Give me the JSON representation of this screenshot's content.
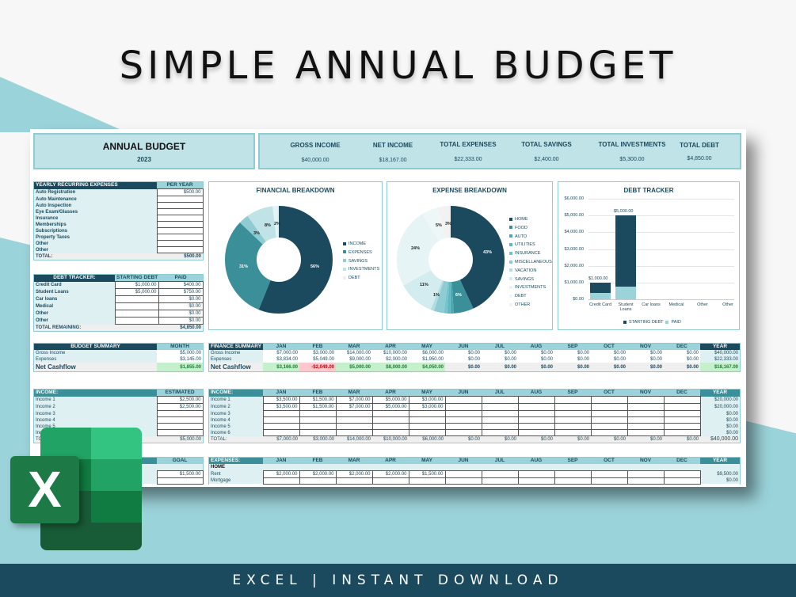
{
  "headline": "SIMPLE ANNUAL BUDGET",
  "footer": "EXCEL | INSTANT DOWNLOAD",
  "logo": {
    "letter": "X",
    "icon": "excel-logo-icon"
  },
  "title_block": {
    "title": "ANNUAL BUDGET",
    "year": "2023"
  },
  "kpis": [
    {
      "label": "GROSS INCOME",
      "value": "$40,000.00"
    },
    {
      "label": "NET INCOME",
      "value": "$18,167.00"
    },
    {
      "label": "TOTAL EXPENSES",
      "value": "$22,333.00"
    },
    {
      "label": "TOTAL SAVINGS",
      "value": "$2,400.00"
    },
    {
      "label": "TOTAL INVESTMENTS",
      "value": "$5,300.00"
    },
    {
      "label": "TOTAL DEBT",
      "value": "$4,850.00"
    }
  ],
  "recurring": {
    "header": "YEARLY RECURRING EXPENSES",
    "col": "PER YEAR",
    "rows": [
      {
        "label": "Auto Registration",
        "value": "$500.00"
      },
      {
        "label": "Auto Maintenance",
        "value": ""
      },
      {
        "label": "Auto Inspection",
        "value": ""
      },
      {
        "label": "Eye Exam/Glasses",
        "value": ""
      },
      {
        "label": "Insurance",
        "value": ""
      },
      {
        "label": "Memberships",
        "value": ""
      },
      {
        "label": "Subscriptions",
        "value": ""
      },
      {
        "label": "Property Taxes",
        "value": ""
      },
      {
        "label": "Other",
        "value": ""
      },
      {
        "label": "Other",
        "value": ""
      }
    ],
    "total_label": "TOTAL:",
    "total": "$500.00"
  },
  "debt_table": {
    "header": "DEBT TRACKER:",
    "cols": [
      "STARTING DEBT",
      "PAID"
    ],
    "rows": [
      {
        "label": "Credit Card",
        "start": "$1,000.00",
        "paid": "$400.00"
      },
      {
        "label": "Student Loans",
        "start": "$5,000.00",
        "paid": "$750.00"
      },
      {
        "label": "Car loans",
        "start": "",
        "paid": "$0.00"
      },
      {
        "label": "Medical",
        "start": "",
        "paid": "$0.00"
      },
      {
        "label": "Other",
        "start": "",
        "paid": "$0.00"
      },
      {
        "label": "Other",
        "start": "",
        "paid": "$0.00"
      }
    ],
    "total_label": "TOTAL REMAINING:",
    "total": "$4,850.00"
  },
  "budget_summary": {
    "header": "BUDGET SUMMARY",
    "col": "MONTH",
    "rows": [
      {
        "label": "Gross Income",
        "value": "$5,000.00"
      },
      {
        "label": "Expenses",
        "value": "$3,145.00"
      }
    ],
    "net_label": "Net Cashflow",
    "net": "$1,855.00"
  },
  "months": [
    "JAN",
    "FEB",
    "MAR",
    "APR",
    "MAY",
    "JUN",
    "JUL",
    "AUG",
    "SEP",
    "OCT",
    "NOV",
    "DEC"
  ],
  "year_label": "YEAR",
  "finance_summary": {
    "header": "FINANCE SUMMARY",
    "gross_label": "Gross Income",
    "gross": [
      "$7,000.00",
      "$3,000.00",
      "$14,000.00",
      "$10,000.00",
      "$6,000.00",
      "$0.00",
      "$0.00",
      "$0.00",
      "$0.00",
      "$0.00",
      "$0.00",
      "$0.00"
    ],
    "gross_year": "$40,000.00",
    "exp_label": "Expenses",
    "exp": [
      "$3,834.00",
      "$5,049.00",
      "$9,000.00",
      "$2,000.00",
      "$1,950.00",
      "$0.00",
      "$0.00",
      "$0.00",
      "$0.00",
      "$0.00",
      "$0.00",
      "$0.00"
    ],
    "exp_year": "$22,333.00",
    "net_label": "Net Cashflow",
    "net": [
      "$3,166.00",
      "-$2,049.00",
      "$5,000.00",
      "$8,000.00",
      "$4,050.00",
      "$0.00",
      "$0.00",
      "$0.00",
      "$0.00",
      "$0.00",
      "$0.00",
      "$0.00"
    ],
    "net_year": "$18,167.00"
  },
  "income_est": {
    "header": "INCOME:",
    "col": "ESTIMATED",
    "rows": [
      {
        "label": "Income 1",
        "value": "$2,500.00"
      },
      {
        "label": "Income 2",
        "value": "$2,500.00"
      },
      {
        "label": "Income 3",
        "value": ""
      },
      {
        "label": "Income 4",
        "value": ""
      },
      {
        "label": "Income 5",
        "value": ""
      },
      {
        "label": "Income 6",
        "value": ""
      }
    ],
    "total_label": "TOTAL:",
    "total": "$5,000.00"
  },
  "income_monthly": {
    "header": "INCOME:",
    "rows": [
      {
        "label": "Income 1",
        "values": [
          "$3,500.00",
          "$1,500.00",
          "$7,000.00",
          "$5,000.00",
          "$3,000.00",
          "",
          "",
          "",
          "",
          "",
          "",
          ""
        ],
        "year": "$20,000.00"
      },
      {
        "label": "Income 2",
        "values": [
          "$3,500.00",
          "$1,500.00",
          "$7,000.00",
          "$5,000.00",
          "$3,000.00",
          "",
          "",
          "",
          "",
          "",
          "",
          ""
        ],
        "year": "$20,000.00"
      },
      {
        "label": "Income 3",
        "values": [
          "",
          "",
          "",
          "",
          "",
          "",
          "",
          "",
          "",
          "",
          "",
          ""
        ],
        "year": "$0.00"
      },
      {
        "label": "Income 4",
        "values": [
          "",
          "",
          "",
          "",
          "",
          "",
          "",
          "",
          "",
          "",
          "",
          ""
        ],
        "year": "$0.00"
      },
      {
        "label": "Income 5",
        "values": [
          "",
          "",
          "",
          "",
          "",
          "",
          "",
          "",
          "",
          "",
          "",
          ""
        ],
        "year": "$0.00"
      },
      {
        "label": "Income 6",
        "values": [
          "",
          "",
          "",
          "",
          "",
          "",
          "",
          "",
          "",
          "",
          "",
          ""
        ],
        "year": "$0.00"
      }
    ],
    "total_label": "TOTAL:",
    "totals": [
      "$7,000.00",
      "$3,000.00",
      "$14,000.00",
      "$10,000.00",
      "$6,000.00",
      "$0.00",
      "$0.00",
      "$0.00",
      "$0.00",
      "$0.00",
      "$0.00",
      "$0.00"
    ],
    "total_year": "$40,000.00"
  },
  "savings_goal": {
    "col": "GOAL",
    "value": "$1,500.00"
  },
  "expenses_monthly": {
    "header": "EXPENSES:",
    "section": "HOME",
    "rows": [
      {
        "label": "Rent",
        "values": [
          "$2,000.00",
          "$2,000.00",
          "$2,000.00",
          "$2,000.00",
          "$1,500.00",
          "",
          "",
          "",
          "",
          "",
          "",
          ""
        ],
        "year": "$9,500.00"
      },
      {
        "label": "Mortgage",
        "values": [
          "",
          "",
          "",
          "",
          "",
          "",
          "",
          "",
          "",
          "",
          "",
          ""
        ],
        "year": "$0.00"
      }
    ]
  },
  "chart_data": [
    {
      "type": "pie",
      "title": "FINANCIAL BREAKDOWN",
      "categories": [
        "INCOME",
        "EXPENSES",
        "SAVINGS",
        "INVESTMENTS",
        "DEBT"
      ],
      "values": [
        56,
        31,
        3,
        8,
        2
      ],
      "labels": [
        "56%",
        "31%",
        "3%",
        "8%",
        "2%"
      ],
      "colors": [
        "#1b4a5e",
        "#3a8f98",
        "#8ecbd2",
        "#bfe3e7",
        "#e3f2f4"
      ],
      "legend_position": "right"
    },
    {
      "type": "pie",
      "title": "EXPENSE BREAKDOWN",
      "categories": [
        "HOME",
        "FOOD",
        "AUTO",
        "UTILITIES",
        "INSURANCE",
        "MISCELLANEOUS",
        "VACATION",
        "SAVINGS",
        "INVESTMENTS",
        "DEBT",
        "OTHER"
      ],
      "values": [
        43,
        6,
        1,
        1,
        1,
        3,
        1,
        11,
        24,
        5,
        3
      ],
      "labels": [
        "43%",
        "6%",
        "1%",
        "1%",
        "1%",
        "3%",
        "1%",
        "11%",
        "24%",
        "5%",
        "3%"
      ],
      "colors": [
        "#1b4a5e",
        "#3a8f98",
        "#4aa9b3",
        "#5db8c1",
        "#74c4cc",
        "#8ecbd2",
        "#b3dde2",
        "#d3ecef",
        "#e6f4f6",
        "#eef7f8",
        "#f2f2f2"
      ],
      "legend_position": "right"
    },
    {
      "type": "bar",
      "title": "DEBT TRACKER",
      "categories": [
        "Credit Card",
        "Student Loans",
        "Car loans",
        "Medical",
        "Other",
        "Other"
      ],
      "series": [
        {
          "name": "STARTING DEBT",
          "values": [
            1000,
            5000,
            0,
            0,
            0,
            0
          ],
          "color": "#1b4a5e"
        },
        {
          "name": "PAID",
          "values": [
            400,
            750,
            0,
            0,
            0,
            0
          ],
          "color": "#9bd3da"
        }
      ],
      "data_labels": [
        "$1,000.00",
        "$5,000.00"
      ],
      "yticks": [
        "$6,000.00",
        "$5,000.00",
        "$4,000.00",
        "$3,000.00",
        "$2,000.00",
        "$1,000.00",
        "$0.00"
      ],
      "ylim": [
        0,
        6000
      ],
      "grid": true,
      "legend_position": "bottom",
      "stacked": "overlap"
    }
  ]
}
